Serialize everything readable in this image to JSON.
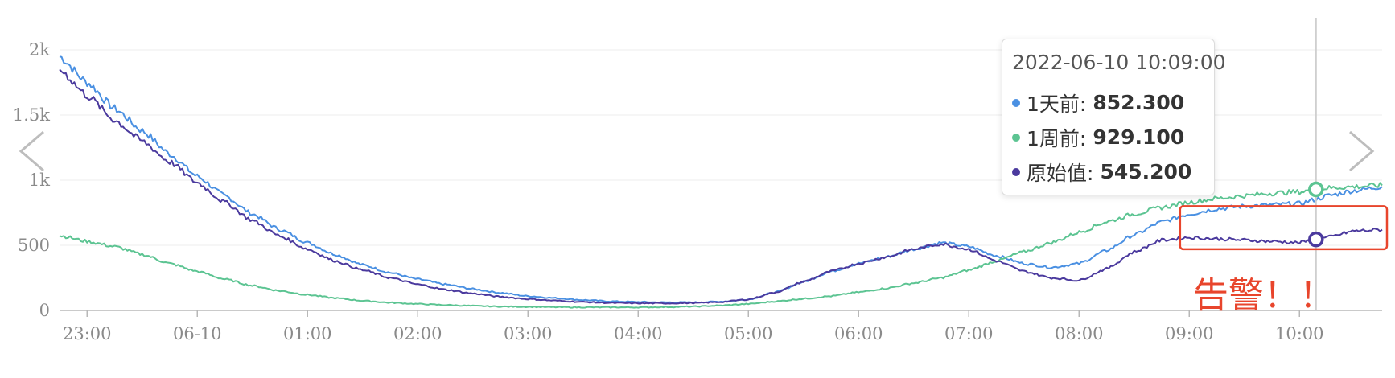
{
  "chart_data": {
    "type": "line",
    "title": "",
    "xlabel": "",
    "ylabel": "",
    "ylim": [
      0,
      2000
    ],
    "x_range": [
      "2022-06-09 22:45",
      "2022-06-10 10:45"
    ],
    "y_ticks": [
      "0",
      "500",
      "1k",
      "1.5k",
      "2k"
    ],
    "x_ticks": [
      "23:00",
      "06-10",
      "01:00",
      "02:00",
      "03:00",
      "04:00",
      "05:00",
      "06:00",
      "07:00",
      "08:00",
      "09:00",
      "10:00"
    ],
    "grid": true,
    "x": [
      "22:45",
      "23:00",
      "23:15",
      "23:30",
      "23:45",
      "00:00",
      "00:15",
      "00:30",
      "00:45",
      "01:00",
      "01:15",
      "01:30",
      "01:45",
      "02:00",
      "02:15",
      "02:30",
      "02:45",
      "03:00",
      "03:15",
      "03:30",
      "03:45",
      "04:00",
      "04:15",
      "04:30",
      "04:45",
      "05:00",
      "05:15",
      "05:30",
      "05:45",
      "06:00",
      "06:15",
      "06:30",
      "06:45",
      "07:00",
      "07:15",
      "07:30",
      "07:45",
      "08:00",
      "08:15",
      "08:30",
      "08:45",
      "09:00",
      "09:15",
      "09:30",
      "09:45",
      "10:00",
      "10:09",
      "10:15",
      "10:30",
      "10:45"
    ],
    "series": [
      {
        "name": "1天前",
        "color": "#4a90e2",
        "values": [
          1950,
          1750,
          1550,
          1380,
          1200,
          1030,
          880,
          740,
          620,
          520,
          430,
          350,
          290,
          240,
          200,
          165,
          135,
          110,
          95,
          80,
          70,
          65,
          62,
          62,
          68,
          85,
          140,
          220,
          300,
          360,
          410,
          470,
          520,
          490,
          420,
          360,
          330,
          360,
          460,
          580,
          680,
          740,
          780,
          800,
          810,
          820,
          852,
          880,
          920,
          950
        ]
      },
      {
        "name": "1周前",
        "color": "#5cc492",
        "values": [
          575,
          530,
          490,
          430,
          360,
          300,
          240,
          190,
          150,
          120,
          95,
          75,
          60,
          50,
          42,
          35,
          30,
          28,
          25,
          24,
          24,
          24,
          26,
          30,
          38,
          50,
          70,
          90,
          110,
          140,
          170,
          210,
          250,
          310,
          380,
          450,
          520,
          600,
          680,
          740,
          790,
          830,
          860,
          880,
          900,
          910,
          929,
          940,
          950,
          960
        ]
      },
      {
        "name": "原始值",
        "color": "#4b3a9e",
        "values": [
          1850,
          1650,
          1460,
          1300,
          1140,
          980,
          830,
          690,
          570,
          470,
          380,
          310,
          250,
          200,
          160,
          130,
          105,
          88,
          75,
          65,
          58,
          55,
          55,
          57,
          65,
          85,
          140,
          220,
          300,
          360,
          410,
          470,
          510,
          470,
          380,
          300,
          250,
          230,
          320,
          450,
          540,
          560,
          550,
          540,
          530,
          520,
          545,
          560,
          610,
          620
        ]
      }
    ],
    "tooltip": {
      "time": "2022-06-10 10:09:00",
      "entries": [
        {
          "label": "1天前:",
          "value": "852.300",
          "color": "#4a90e2"
        },
        {
          "label": "1周前:",
          "value": "929.100",
          "color": "#5cc492"
        },
        {
          "label": "原始值:",
          "value": "545.200",
          "color": "#4b3a9e"
        }
      ]
    },
    "annotations": [
      {
        "text": "告警！！",
        "color": "#e8452c"
      }
    ]
  }
}
